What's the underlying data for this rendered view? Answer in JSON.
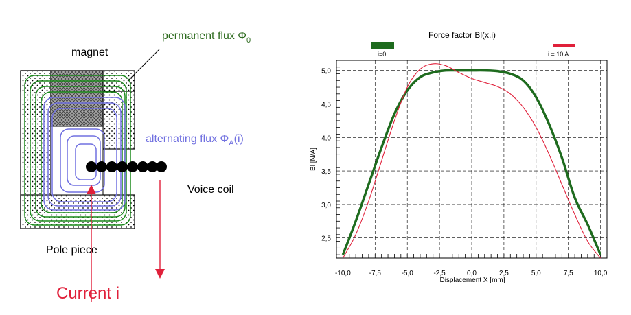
{
  "diagram": {
    "label_magnet": "magnet",
    "label_permanent_flux": "permanent flux Φ",
    "label_permanent_flux_sub": "0",
    "label_alternating_flux": "alternating flux Φ",
    "label_alternating_flux_sub": "A",
    "label_alternating_flux_arg": "(i)",
    "label_voice_coil": "Voice coil",
    "label_pole_piece": "Pole piece",
    "label_current": "Current i",
    "colors": {
      "permanent": "#1a8a1a",
      "alternating": "#7070e0",
      "current": "#e0203a",
      "flux_label_green": "#2e6b1f"
    }
  },
  "chart_data": {
    "type": "line",
    "title": "Force factor Bl(x,i)",
    "xlabel": "Displacement  X  [mm]",
    "ylabel": "Bl  [N/A]",
    "xlim": [
      -10.5,
      10.5
    ],
    "ylim": [
      2.2,
      5.15
    ],
    "x_ticks": [
      -10,
      -7.5,
      -5,
      -2.5,
      0,
      2.5,
      5,
      7.5,
      10
    ],
    "x_tick_labels": [
      "-10,0",
      "-7,5",
      "-5,0",
      "-2,5",
      "0,0",
      "2,5",
      "5,0",
      "7,5",
      "10,0"
    ],
    "y_ticks": [
      2.5,
      3.0,
      3.5,
      4.0,
      4.5,
      5.0
    ],
    "y_tick_labels": [
      "2,5",
      "3,0",
      "3,5",
      "4,0",
      "4,5",
      "5,0"
    ],
    "grid": true,
    "legend": "top",
    "series": [
      {
        "name": "i=0",
        "color": "#1e6b1e",
        "x": [
          -10,
          -9,
          -8,
          -7,
          -6,
          -5,
          -4,
          -3,
          -2,
          -1,
          0,
          1,
          2,
          3,
          4,
          5,
          6,
          7,
          8,
          9,
          10
        ],
        "y": [
          2.25,
          2.75,
          3.3,
          3.85,
          4.35,
          4.7,
          4.9,
          4.97,
          5.0,
          5.0,
          5.0,
          5.0,
          4.99,
          4.95,
          4.85,
          4.6,
          4.2,
          3.7,
          3.1,
          2.7,
          2.25
        ]
      },
      {
        "name": "i = 10 A",
        "color": "#e0203a",
        "x": [
          -10,
          -9,
          -8,
          -7,
          -6,
          -5,
          -4,
          -3,
          -2,
          -1,
          0,
          1,
          2,
          3,
          4,
          5,
          6,
          7,
          8,
          9,
          10
        ],
        "y": [
          2.2,
          2.55,
          3.05,
          3.65,
          4.25,
          4.75,
          5.02,
          5.1,
          5.07,
          4.97,
          4.88,
          4.82,
          4.76,
          4.65,
          4.45,
          4.15,
          3.75,
          3.3,
          2.85,
          2.45,
          2.2
        ]
      }
    ]
  }
}
